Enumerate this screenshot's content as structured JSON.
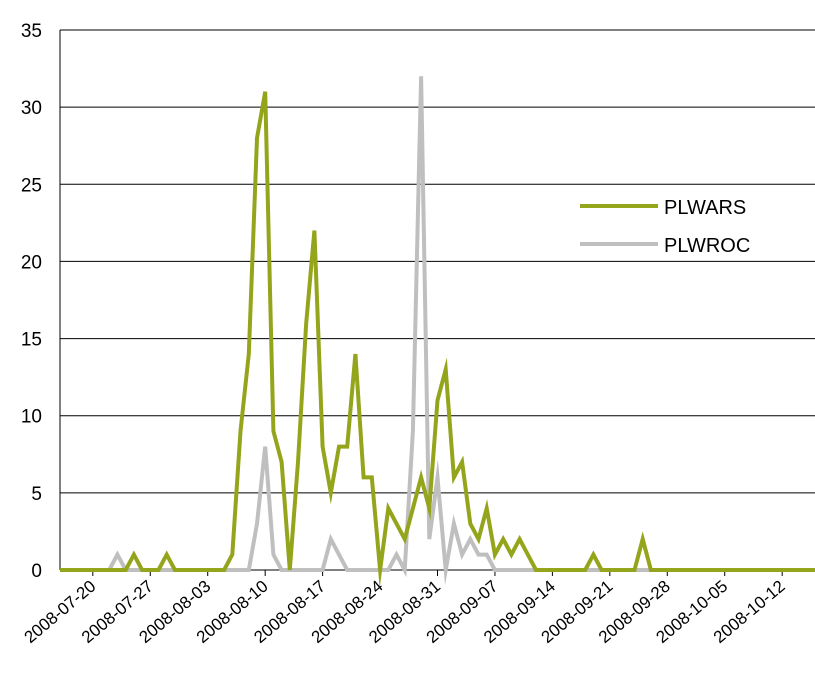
{
  "chart_data": {
    "type": "line",
    "title": "",
    "xlabel": "",
    "ylabel": "",
    "ylim": [
      0,
      35
    ],
    "yticks": [
      0,
      5,
      10,
      15,
      20,
      25,
      30,
      35
    ],
    "x_start": "2008-07-16",
    "x_end": "2008-10-16",
    "xticks": [
      "2008-07-20",
      "2008-07-27",
      "2008-08-03",
      "2008-08-10",
      "2008-08-17",
      "2008-08-24",
      "2008-08-31",
      "2008-09-07",
      "2008-09-14",
      "2008-09-21",
      "2008-09-28",
      "2008-10-05",
      "2008-10-12"
    ],
    "grid": "horizontal",
    "legend_position": "right",
    "series": [
      {
        "name": "PLWARS",
        "color": "#94a51c",
        "points": [
          [
            "2008-07-16",
            0
          ],
          [
            "2008-07-24",
            0
          ],
          [
            "2008-07-25",
            1
          ],
          [
            "2008-07-26",
            0
          ],
          [
            "2008-07-28",
            0
          ],
          [
            "2008-07-29",
            1
          ],
          [
            "2008-07-30",
            0
          ],
          [
            "2008-08-05",
            0
          ],
          [
            "2008-08-06",
            1
          ],
          [
            "2008-08-07",
            9
          ],
          [
            "2008-08-08",
            14
          ],
          [
            "2008-08-09",
            28
          ],
          [
            "2008-08-10",
            31
          ],
          [
            "2008-08-11",
            9
          ],
          [
            "2008-08-12",
            7
          ],
          [
            "2008-08-13",
            0
          ],
          [
            "2008-08-14",
            7
          ],
          [
            "2008-08-15",
            16
          ],
          [
            "2008-08-16",
            22
          ],
          [
            "2008-08-17",
            8
          ],
          [
            "2008-08-18",
            5
          ],
          [
            "2008-08-19",
            8
          ],
          [
            "2008-08-20",
            8
          ],
          [
            "2008-08-21",
            14
          ],
          [
            "2008-08-22",
            6
          ],
          [
            "2008-08-23",
            6
          ],
          [
            "2008-08-24",
            0
          ],
          [
            "2008-08-25",
            4
          ],
          [
            "2008-08-26",
            3
          ],
          [
            "2008-08-27",
            2
          ],
          [
            "2008-08-28",
            4
          ],
          [
            "2008-08-29",
            6
          ],
          [
            "2008-08-30",
            4
          ],
          [
            "2008-08-31",
            11
          ],
          [
            "2008-09-01",
            13
          ],
          [
            "2008-09-02",
            6
          ],
          [
            "2008-09-03",
            7
          ],
          [
            "2008-09-04",
            3
          ],
          [
            "2008-09-05",
            2
          ],
          [
            "2008-09-06",
            4
          ],
          [
            "2008-09-07",
            1
          ],
          [
            "2008-09-08",
            2
          ],
          [
            "2008-09-09",
            1
          ],
          [
            "2008-09-10",
            2
          ],
          [
            "2008-09-11",
            1
          ],
          [
            "2008-09-12",
            0
          ],
          [
            "2008-09-18",
            0
          ],
          [
            "2008-09-19",
            1
          ],
          [
            "2008-09-20",
            0
          ],
          [
            "2008-09-24",
            0
          ],
          [
            "2008-09-25",
            2
          ],
          [
            "2008-09-26",
            0
          ],
          [
            "2008-10-16",
            0
          ]
        ]
      },
      {
        "name": "PLWROC",
        "color": "#bfbfbf",
        "points": [
          [
            "2008-07-16",
            0
          ],
          [
            "2008-07-22",
            0
          ],
          [
            "2008-07-23",
            1
          ],
          [
            "2008-07-24",
            0
          ],
          [
            "2008-08-07",
            0
          ],
          [
            "2008-08-08",
            0
          ],
          [
            "2008-08-09",
            3
          ],
          [
            "2008-08-10",
            8
          ],
          [
            "2008-08-11",
            1
          ],
          [
            "2008-08-12",
            0
          ],
          [
            "2008-08-17",
            0
          ],
          [
            "2008-08-18",
            2
          ],
          [
            "2008-08-19",
            1
          ],
          [
            "2008-08-20",
            0
          ],
          [
            "2008-08-25",
            0
          ],
          [
            "2008-08-26",
            1
          ],
          [
            "2008-08-27",
            0
          ],
          [
            "2008-08-28",
            9
          ],
          [
            "2008-08-29",
            32
          ],
          [
            "2008-08-30",
            2
          ],
          [
            "2008-08-31",
            6
          ],
          [
            "2008-09-01",
            0
          ],
          [
            "2008-09-02",
            3
          ],
          [
            "2008-09-03",
            1
          ],
          [
            "2008-09-04",
            2
          ],
          [
            "2008-09-05",
            1
          ],
          [
            "2008-09-06",
            1
          ],
          [
            "2008-09-07",
            0
          ],
          [
            "2008-10-16",
            0
          ]
        ]
      }
    ]
  }
}
